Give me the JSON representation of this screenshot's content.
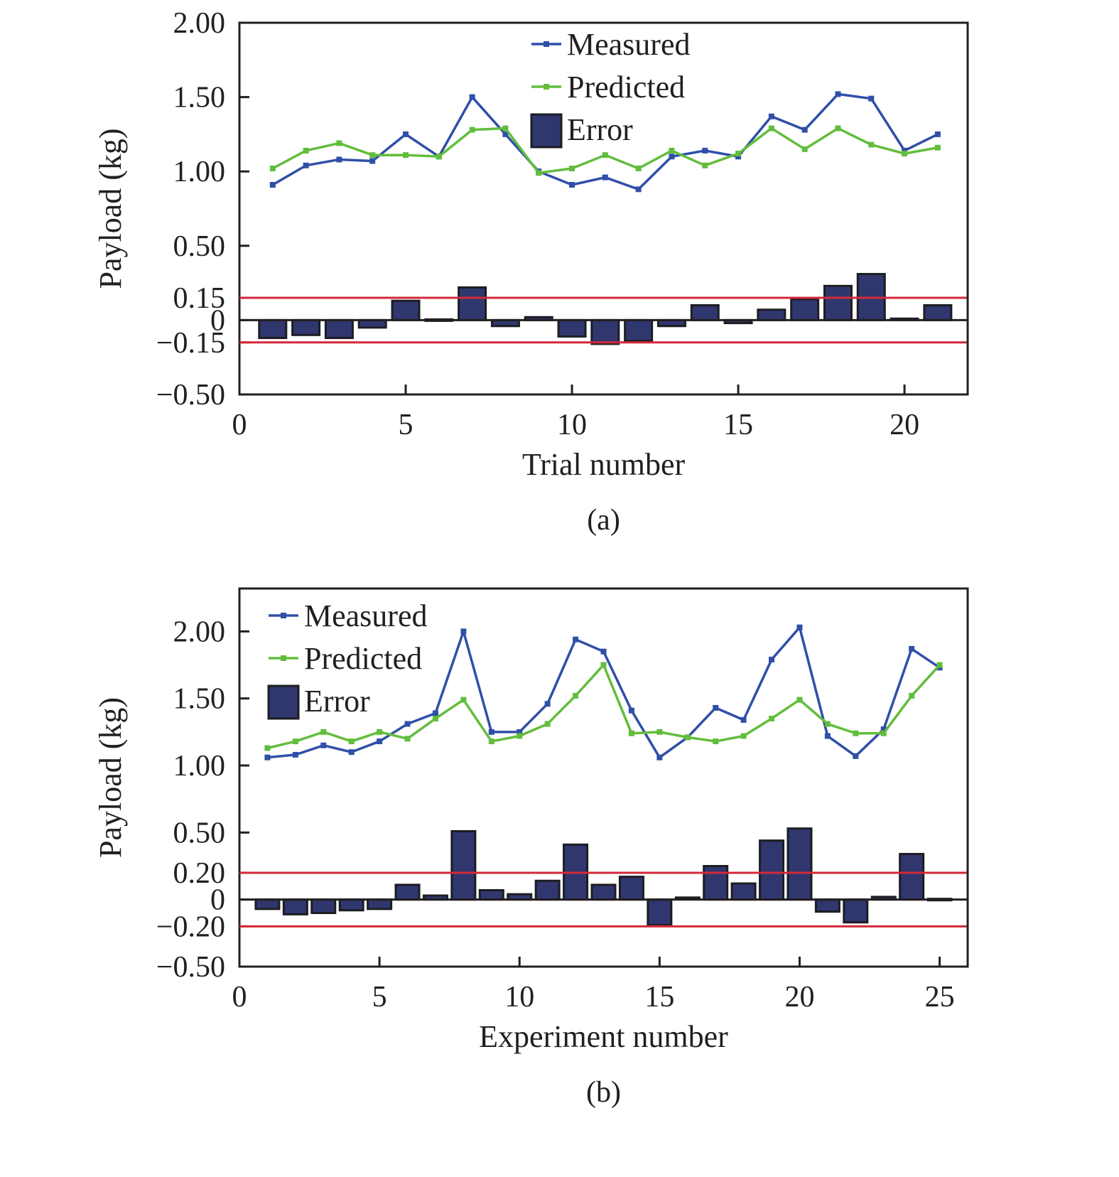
{
  "colors": {
    "measured": "#2f4fa8",
    "predicted": "#62bd3c",
    "error_fill": "#30376f",
    "error_stroke": "#1d1d22",
    "threshold": "#d3293a",
    "axis": "#231f20"
  },
  "chart_data": [
    {
      "type": "line+bar",
      "panel_label": "(a)",
      "xlabel": "Trial number",
      "ylabel": "Payload (kg)",
      "xlim": [
        0,
        21.9
      ],
      "ylim": [
        -0.5,
        2.0
      ],
      "x_ticks": [
        0,
        5,
        10,
        15,
        20
      ],
      "x_tick_labels": [
        "0",
        "5",
        "10",
        "15",
        "20"
      ],
      "y_ticks": [
        2.0,
        1.5,
        1.0,
        0.5,
        0.15,
        0,
        -0.15,
        -0.5
      ],
      "y_tick_labels": [
        "2.00",
        "1.50",
        "1.00",
        "0.50",
        "0.15",
        "0",
        "−0.15",
        "−0.50"
      ],
      "thresholds": [
        0.15,
        -0.15
      ],
      "legend": [
        "Measured",
        "Predicted",
        "Error"
      ],
      "legend_position": "top-center",
      "x": [
        1,
        2,
        3,
        4,
        5,
        6,
        7,
        8,
        9,
        10,
        11,
        12,
        13,
        14,
        15,
        16,
        17,
        18,
        19,
        20,
        21
      ],
      "series": [
        {
          "name": "Measured",
          "kind": "line",
          "values": [
            0.91,
            1.04,
            1.08,
            1.07,
            1.25,
            1.1,
            1.5,
            1.25,
            1.0,
            0.91,
            0.96,
            0.88,
            1.1,
            1.14,
            1.1,
            1.37,
            1.28,
            1.52,
            1.49,
            1.14,
            1.25
          ]
        },
        {
          "name": "Predicted",
          "kind": "line",
          "values": [
            1.02,
            1.14,
            1.19,
            1.11,
            1.11,
            1.1,
            1.28,
            1.29,
            0.99,
            1.02,
            1.11,
            1.02,
            1.14,
            1.04,
            1.12,
            1.29,
            1.15,
            1.29,
            1.18,
            1.12,
            1.16
          ]
        },
        {
          "name": "Error",
          "kind": "bar",
          "values": [
            -0.12,
            -0.1,
            -0.12,
            -0.05,
            0.13,
            0.0,
            0.22,
            -0.04,
            0.02,
            -0.11,
            -0.16,
            -0.14,
            -0.04,
            0.1,
            -0.02,
            0.07,
            0.14,
            0.23,
            0.31,
            0.01,
            0.1
          ]
        }
      ]
    },
    {
      "type": "line+bar",
      "panel_label": "(b)",
      "xlabel": "Experiment number",
      "ylabel": "Payload (kg)",
      "xlim": [
        0,
        26
      ],
      "ylim": [
        -0.5,
        2.32
      ],
      "x_ticks": [
        0,
        5,
        10,
        15,
        20,
        25
      ],
      "x_tick_labels": [
        "0",
        "5",
        "10",
        "15",
        "20",
        "25"
      ],
      "y_ticks": [
        2.0,
        1.5,
        1.0,
        0.5,
        0.2,
        0,
        -0.2,
        -0.5
      ],
      "y_tick_labels": [
        "2.00",
        "1.50",
        "1.00",
        "0.50",
        "0.20",
        "0",
        "−0.20",
        "−0.50"
      ],
      "thresholds": [
        0.2,
        -0.2
      ],
      "legend": [
        "Measured",
        "Predicted",
        "Error"
      ],
      "legend_position": "top-left",
      "x": [
        1,
        2,
        3,
        4,
        5,
        6,
        7,
        8,
        9,
        10,
        11,
        12,
        13,
        14,
        15,
        16,
        17,
        18,
        19,
        20,
        21,
        22,
        23,
        24,
        25
      ],
      "series": [
        {
          "name": "Measured",
          "kind": "line",
          "values": [
            1.06,
            1.08,
            1.15,
            1.1,
            1.18,
            1.31,
            1.39,
            2.0,
            1.25,
            1.25,
            1.46,
            1.94,
            1.85,
            1.41,
            1.06,
            1.21,
            1.43,
            1.34,
            1.79,
            2.03,
            1.22,
            1.07,
            1.27,
            1.87,
            1.73
          ]
        },
        {
          "name": "Predicted",
          "kind": "line",
          "values": [
            1.13,
            1.18,
            1.25,
            1.18,
            1.25,
            1.2,
            1.35,
            1.49,
            1.18,
            1.22,
            1.31,
            1.52,
            1.75,
            1.24,
            1.25,
            1.21,
            1.18,
            1.22,
            1.35,
            1.49,
            1.31,
            1.24,
            1.24,
            1.52,
            1.75
          ]
        },
        {
          "name": "Error",
          "kind": "bar",
          "values": [
            -0.07,
            -0.11,
            -0.1,
            -0.08,
            -0.07,
            0.11,
            0.03,
            0.51,
            0.07,
            0.04,
            0.14,
            0.41,
            0.11,
            0.17,
            -0.19,
            0.01,
            0.25,
            0.12,
            0.44,
            0.53,
            -0.09,
            -0.17,
            0.02,
            0.34,
            -0.01
          ]
        }
      ]
    }
  ]
}
